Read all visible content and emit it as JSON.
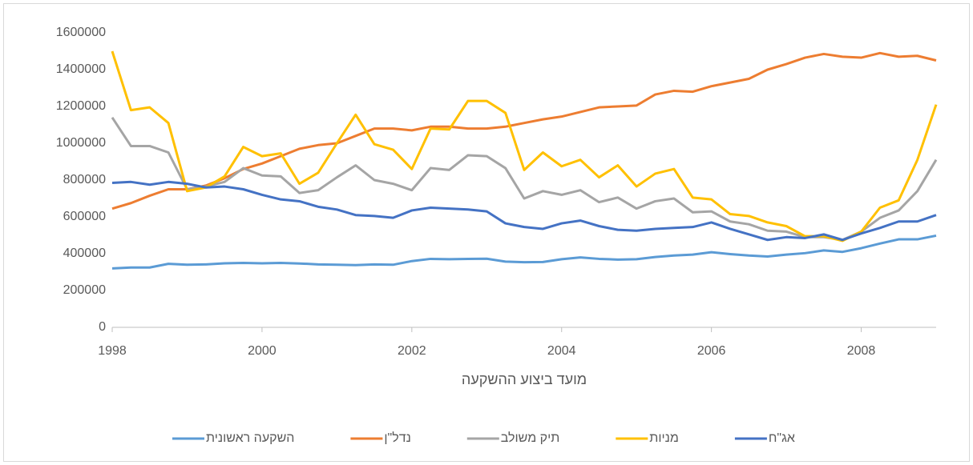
{
  "chart_data": {
    "type": "line",
    "x_label": "מועד ביצוע ההשקעה",
    "x": [
      1998,
      1998.25,
      1998.5,
      1998.75,
      1999,
      1999.25,
      1999.5,
      1999.75,
      2000,
      2000.25,
      2000.5,
      2000.75,
      2001,
      2001.25,
      2001.5,
      2001.75,
      2002,
      2002.25,
      2002.5,
      2002.75,
      2003,
      2003.25,
      2003.5,
      2003.75,
      2004,
      2004.25,
      2004.5,
      2004.75,
      2005,
      2005.25,
      2005.5,
      2005.75,
      2006,
      2006.25,
      2006.5,
      2006.75,
      2007,
      2007.25,
      2007.5,
      2007.75,
      2008,
      2008.25,
      2008.5,
      2008.75,
      2009
    ],
    "series": [
      {
        "name": "השקעה ראשונית",
        "color": "#5b9bd5",
        "values": [
          320000,
          325000,
          325000,
          345000,
          340000,
          342000,
          348000,
          350000,
          348000,
          350000,
          347000,
          342000,
          340000,
          338000,
          342000,
          340000,
          360000,
          372000,
          370000,
          372000,
          373000,
          357000,
          354000,
          355000,
          370000,
          380000,
          372000,
          368000,
          370000,
          382000,
          390000,
          395000,
          408000,
          398000,
          390000,
          385000,
          395000,
          403000,
          418000,
          410000,
          430000,
          455000,
          478000,
          478000,
          498000
        ]
      },
      {
        "name": "נדל\"ן",
        "color": "#ed7d31",
        "values": [
          645000,
          675000,
          715000,
          750000,
          750000,
          770000,
          810000,
          860000,
          890000,
          930000,
          970000,
          990000,
          1000000,
          1040000,
          1080000,
          1080000,
          1070000,
          1090000,
          1090000,
          1080000,
          1080000,
          1090000,
          1110000,
          1130000,
          1145000,
          1170000,
          1195000,
          1200000,
          1205000,
          1265000,
          1285000,
          1280000,
          1310000,
          1330000,
          1350000,
          1400000,
          1430000,
          1465000,
          1485000,
          1470000,
          1465000,
          1490000,
          1470000,
          1475000,
          1450000
        ]
      },
      {
        "name": "תיק משולב",
        "color": "#a5a5a5",
        "values": [
          1140000,
          985000,
          985000,
          950000,
          750000,
          765000,
          790000,
          865000,
          825000,
          820000,
          730000,
          745000,
          815000,
          880000,
          800000,
          780000,
          745000,
          865000,
          855000,
          935000,
          930000,
          865000,
          700000,
          740000,
          720000,
          745000,
          680000,
          705000,
          645000,
          685000,
          700000,
          625000,
          630000,
          575000,
          560000,
          525000,
          520000,
          490000,
          490000,
          475000,
          520000,
          595000,
          635000,
          740000,
          910000
        ]
      },
      {
        "name": "מניות",
        "color": "#ffc000",
        "values": [
          1500000,
          1180000,
          1195000,
          1110000,
          740000,
          760000,
          820000,
          980000,
          930000,
          945000,
          780000,
          840000,
          1000000,
          1155000,
          995000,
          965000,
          860000,
          1080000,
          1075000,
          1230000,
          1230000,
          1165000,
          855000,
          950000,
          875000,
          910000,
          815000,
          880000,
          765000,
          835000,
          860000,
          705000,
          695000,
          615000,
          605000,
          570000,
          550000,
          495000,
          495000,
          470000,
          520000,
          650000,
          690000,
          910000,
          1210000
        ]
      },
      {
        "name": "אג\"ח",
        "color": "#4472c4",
        "values": [
          785000,
          790000,
          775000,
          790000,
          780000,
          760000,
          765000,
          750000,
          720000,
          695000,
          685000,
          655000,
          640000,
          610000,
          605000,
          595000,
          635000,
          650000,
          645000,
          640000,
          630000,
          565000,
          545000,
          535000,
          565000,
          580000,
          550000,
          530000,
          525000,
          535000,
          540000,
          545000,
          570000,
          535000,
          505000,
          475000,
          490000,
          485000,
          505000,
          475000,
          510000,
          540000,
          575000,
          575000,
          610000
        ]
      }
    ],
    "xlim": [
      1998,
      2009
    ],
    "xticks": [
      1998,
      2000,
      2002,
      2004,
      2006,
      2008
    ],
    "ylim": [
      0,
      1600000
    ],
    "yticks": [
      0,
      200000,
      400000,
      600000,
      800000,
      1000000,
      1200000,
      1400000,
      1600000
    ],
    "grid": false,
    "legend": "bottom"
  }
}
